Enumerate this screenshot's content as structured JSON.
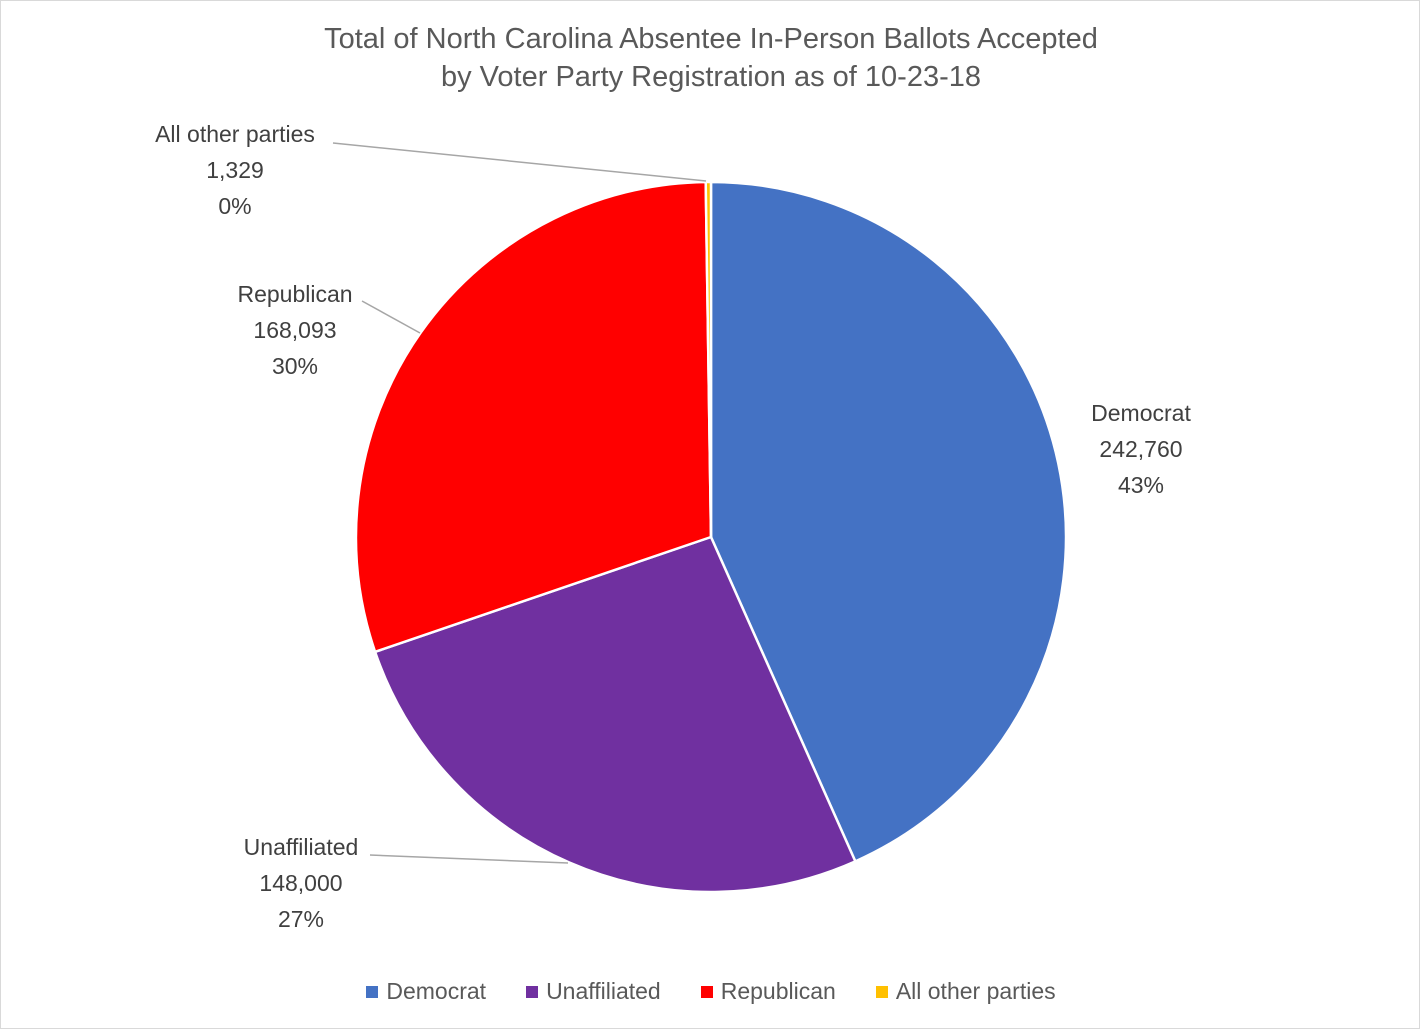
{
  "chart_data": {
    "type": "pie",
    "title": [
      "Total of North Carolina Absentee In-Person Ballots Accepted",
      "by Voter Party Registration as of 10-23-18"
    ],
    "slices": [
      {
        "name": "Democrat",
        "value": 242760,
        "value_label": "242,760",
        "percent_label": "43%",
        "color": "#4472C4"
      },
      {
        "name": "Unaffiliated",
        "value": 148000,
        "value_label": "148,000",
        "percent_label": "27%",
        "color": "#7030A0"
      },
      {
        "name": "Republican",
        "value": 168093,
        "value_label": "168,093",
        "percent_label": "30%",
        "color": "#FF0000"
      },
      {
        "name": "All other parties",
        "value": 1329,
        "value_label": "1,329",
        "percent_label": "0%",
        "color": "#FFC000"
      }
    ],
    "legend_position": "bottom"
  }
}
